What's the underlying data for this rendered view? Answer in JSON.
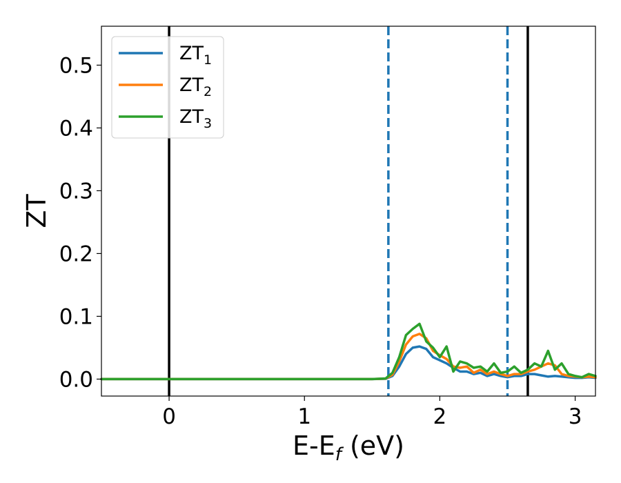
{
  "chart_data": {
    "type": "line",
    "title": "",
    "xlabel": "E-E",
    "xlabel_sub": "f",
    "xlabel_unit": " (eV)",
    "ylabel": "ZT",
    "xlim": [
      -0.5,
      3.15
    ],
    "ylim": [
      -0.027,
      0.562
    ],
    "x_ticks": [
      0,
      1,
      2,
      3
    ],
    "x_tick_labels": [
      "0",
      "1",
      "2",
      "3"
    ],
    "y_ticks": [
      0.0,
      0.1,
      0.2,
      0.3,
      0.4,
      0.5
    ],
    "y_tick_labels": [
      "0.0",
      "0.1",
      "0.2",
      "0.3",
      "0.4",
      "0.5"
    ],
    "grid": false,
    "legend_position": "top-left",
    "vertical_lines": [
      {
        "x": 0.0,
        "style": "solid",
        "color": "#000000"
      },
      {
        "x": 1.62,
        "style": "dashed",
        "color": "#1f77b4"
      },
      {
        "x": 2.5,
        "style": "dashed",
        "color": "#1f77b4"
      },
      {
        "x": 2.65,
        "style": "solid",
        "color": "#000000"
      }
    ],
    "series": [
      {
        "name": "ZT",
        "name_sub": "1",
        "color": "#1f77b4",
        "x": [
          -0.5,
          1.5,
          1.6,
          1.65,
          1.7,
          1.75,
          1.8,
          1.85,
          1.9,
          1.95,
          2.0,
          2.05,
          2.1,
          2.15,
          2.2,
          2.25,
          2.3,
          2.35,
          2.4,
          2.45,
          2.5,
          2.55,
          2.6,
          2.65,
          2.7,
          2.75,
          2.8,
          2.85,
          2.9,
          2.95,
          3.0,
          3.05,
          3.1,
          3.15
        ],
        "y": [
          0.0,
          0.0,
          0.0005,
          0.005,
          0.02,
          0.04,
          0.05,
          0.052,
          0.048,
          0.035,
          0.03,
          0.025,
          0.018,
          0.012,
          0.012,
          0.008,
          0.01,
          0.005,
          0.008,
          0.005,
          0.003,
          0.005,
          0.005,
          0.008,
          0.008,
          0.006,
          0.004,
          0.005,
          0.004,
          0.003,
          0.002,
          0.002,
          0.003,
          0.002
        ]
      },
      {
        "name": "ZT",
        "name_sub": "2",
        "color": "#ff7f0e",
        "x": [
          -0.5,
          1.5,
          1.6,
          1.65,
          1.7,
          1.75,
          1.8,
          1.85,
          1.9,
          1.95,
          2.0,
          2.05,
          2.1,
          2.15,
          2.2,
          2.25,
          2.3,
          2.35,
          2.4,
          2.45,
          2.5,
          2.55,
          2.6,
          2.65,
          2.7,
          2.75,
          2.8,
          2.85,
          2.9,
          2.95,
          3.0,
          3.05,
          3.1,
          3.15
        ],
        "y": [
          0.0,
          0.0,
          0.0008,
          0.007,
          0.028,
          0.055,
          0.068,
          0.072,
          0.065,
          0.045,
          0.038,
          0.032,
          0.02,
          0.018,
          0.02,
          0.01,
          0.015,
          0.008,
          0.012,
          0.008,
          0.005,
          0.008,
          0.008,
          0.012,
          0.015,
          0.02,
          0.025,
          0.022,
          0.008,
          0.005,
          0.004,
          0.003,
          0.004,
          0.003
        ]
      },
      {
        "name": "ZT",
        "name_sub": "3",
        "color": "#2ca02c",
        "x": [
          -0.5,
          1.5,
          1.6,
          1.65,
          1.7,
          1.75,
          1.8,
          1.85,
          1.9,
          1.95,
          2.0,
          2.05,
          2.1,
          2.15,
          2.2,
          2.25,
          2.3,
          2.35,
          2.4,
          2.45,
          2.5,
          2.55,
          2.6,
          2.65,
          2.7,
          2.75,
          2.8,
          2.85,
          2.9,
          2.95,
          3.0,
          3.05,
          3.1,
          3.15
        ],
        "y": [
          0.0,
          0.0,
          0.001,
          0.01,
          0.035,
          0.07,
          0.08,
          0.088,
          0.06,
          0.05,
          0.035,
          0.052,
          0.012,
          0.028,
          0.025,
          0.018,
          0.02,
          0.012,
          0.025,
          0.01,
          0.012,
          0.02,
          0.01,
          0.015,
          0.025,
          0.02,
          0.045,
          0.015,
          0.025,
          0.008,
          0.005,
          0.003,
          0.008,
          0.005
        ]
      }
    ]
  }
}
